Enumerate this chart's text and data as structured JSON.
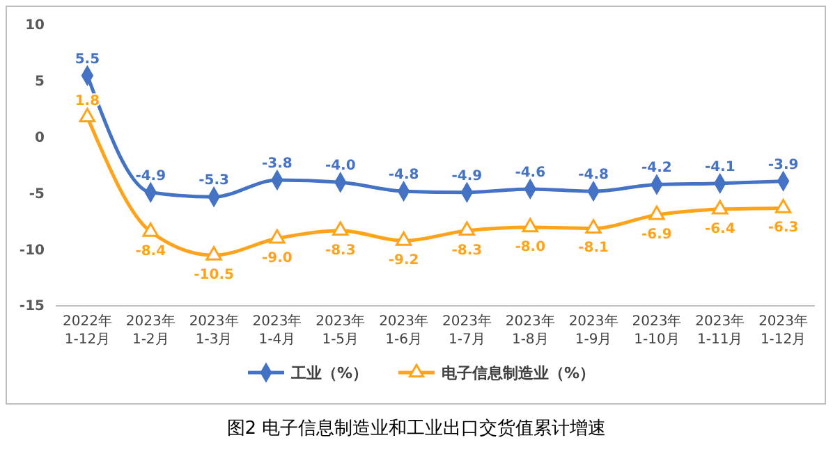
{
  "chart_data": {
    "type": "line",
    "title": "图2 电子信息制造业和工业出口交货值累计增速",
    "categories": [
      "2022年\n1-12月",
      "2023年\n1-2月",
      "2023年\n1-3月",
      "2023年\n1-4月",
      "2023年\n1-5月",
      "2023年\n1-6月",
      "2023年\n1-7月",
      "2023年\n1-8月",
      "2023年\n1-9月",
      "2023年\n1-10月",
      "2023年\n1-11月",
      "2023年\n1-12月"
    ],
    "series": [
      {
        "name": "工业（%）",
        "color": "#4472c4",
        "marker": "diamond",
        "values": [
          5.5,
          -4.9,
          -5.3,
          -3.8,
          -4.0,
          -4.8,
          -4.9,
          -4.6,
          -4.8,
          -4.2,
          -4.1,
          -3.9
        ],
        "value_labels": [
          "5.5",
          "-4.9",
          "-5.3",
          "-3.8",
          "-4.0",
          "-4.8",
          "-4.9",
          "-4.6",
          "-4.8",
          "-4.2",
          "-4.1",
          "-3.9"
        ]
      },
      {
        "name": "电子信息制造业（%）",
        "color": "#ffa31a",
        "marker": "triangle",
        "values": [
          1.8,
          -8.4,
          -10.5,
          -9.0,
          -8.3,
          -9.2,
          -8.3,
          -8.0,
          -8.1,
          -6.9,
          -6.4,
          -6.3
        ],
        "value_labels": [
          "1.8",
          "-8.4",
          "-10.5",
          "-9.0",
          "-8.3",
          "-9.2",
          "-8.3",
          "-8.0",
          "-8.1",
          "-6.9",
          "-6.4",
          "-6.3"
        ]
      }
    ],
    "ylim": [
      -15,
      10
    ],
    "yticks": [
      -15,
      -10,
      -5,
      0,
      5,
      10
    ],
    "grid": false,
    "legend": "bottom"
  }
}
